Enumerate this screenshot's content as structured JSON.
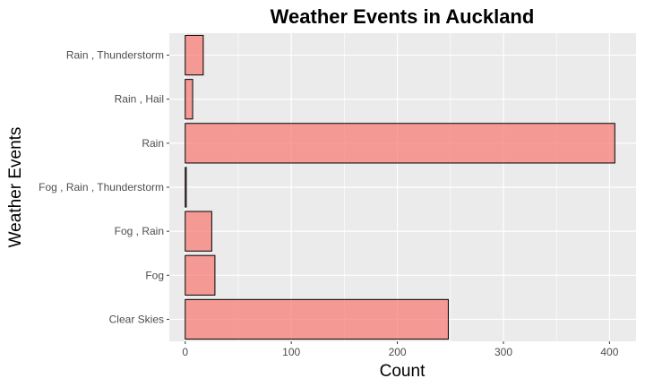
{
  "chart_data": {
    "type": "bar",
    "orientation": "horizontal",
    "title": "Weather Events in Auckland",
    "xlabel": "Count",
    "ylabel": "Weather Events",
    "categories": [
      "Clear Skies",
      "Fog",
      "Fog , Rain",
      "Fog , Rain , Thunderstorm",
      "Rain",
      "Rain , Hail",
      "Rain , Thunderstorm"
    ],
    "values": [
      248,
      28,
      25,
      1,
      405,
      7,
      17
    ],
    "xlim": [
      -15,
      425
    ],
    "xticks": [
      0,
      100,
      200,
      300,
      400
    ],
    "grid": true,
    "legend": "none",
    "colors": {
      "panel": "#ebebeb",
      "grid": "#ffffff",
      "bar_fill": "#f8766d",
      "bar_stroke": "#000000"
    }
  }
}
